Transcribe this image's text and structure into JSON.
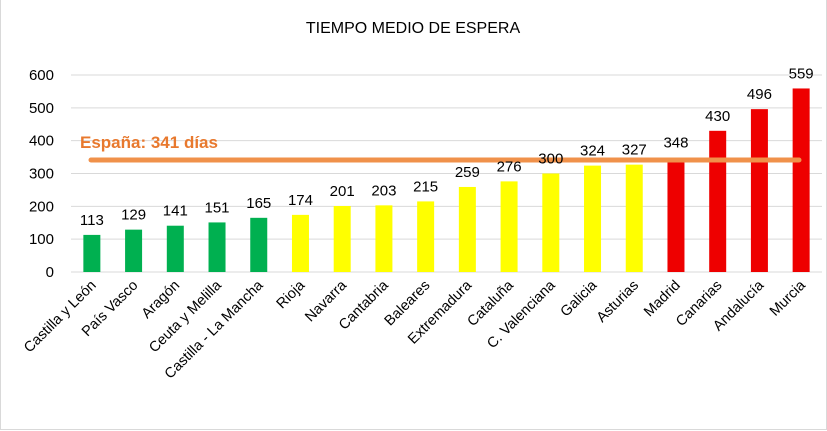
{
  "chart_data": {
    "type": "bar",
    "title": "TIEMPO MEDIO DE ESPERA",
    "xlabel": "",
    "ylabel": "",
    "ylim": [
      0,
      600
    ],
    "yticks": [
      "0",
      "100",
      "200",
      "300",
      "400",
      "500",
      "600"
    ],
    "grid": true,
    "categories": [
      "Castilla y León",
      "País Vasco",
      "Aragón",
      "Ceuta y Melilla",
      "Castilla - La Mancha",
      "Rioja",
      "Navarra",
      "Cantabria",
      "Baleares",
      "Extremadura",
      "Cataluña",
      "C. Valenciana",
      "Galicia",
      "Asturias",
      "Madrid",
      "Canarias",
      "Andalucía",
      "Murcia"
    ],
    "values": [
      113,
      129,
      141,
      151,
      165,
      174,
      201,
      203,
      215,
      259,
      276,
      300,
      324,
      327,
      348,
      430,
      496,
      559
    ],
    "colors": [
      "#00b050",
      "#00b050",
      "#00b050",
      "#00b050",
      "#00b050",
      "#ffff00",
      "#ffff00",
      "#ffff00",
      "#ffff00",
      "#ffff00",
      "#ffff00",
      "#ffff00",
      "#ffff00",
      "#ffff00",
      "#ee0000",
      "#ee0000",
      "#ee0000",
      "#ee0000"
    ],
    "reference_line": {
      "label": "España: 341 días",
      "value": 341,
      "color": "#f0914a"
    }
  }
}
